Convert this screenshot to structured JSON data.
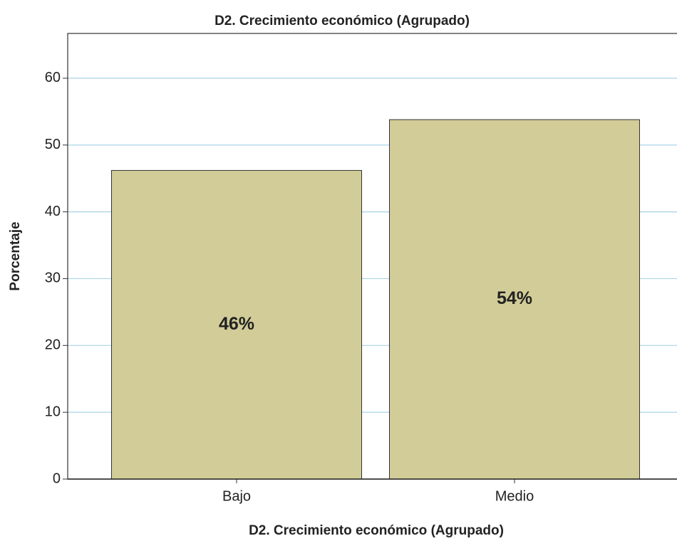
{
  "chart_data": {
    "type": "bar",
    "title": "D2. Crecimiento económico (Agrupado)",
    "x_label": "D2. Crecimiento económico (Agrupado)",
    "y_label": "Porcentaje",
    "categories": [
      "Bajo",
      "Medio"
    ],
    "values": [
      46.2,
      53.8
    ],
    "value_labels": [
      "46%",
      "54%"
    ],
    "color": "#d2cc98",
    "ylim": [
      0,
      66.7
    ],
    "yticks": [
      0,
      10,
      20,
      30,
      40,
      50,
      60
    ],
    "grid": true
  }
}
